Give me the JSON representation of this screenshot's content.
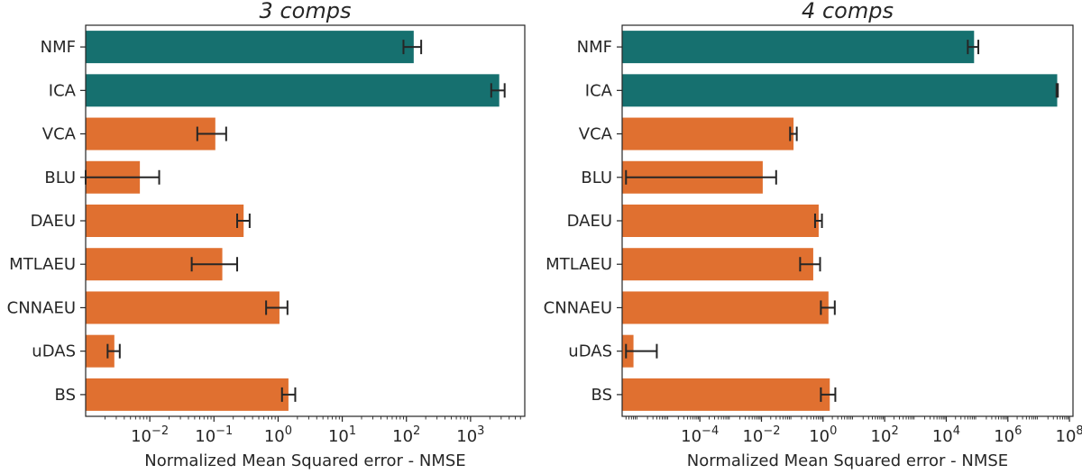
{
  "colors": {
    "baseline": "#16706f",
    "deep": "#e07030",
    "axis": "#262626"
  },
  "chart_data": [
    {
      "type": "bar",
      "orientation": "horizontal",
      "title": "3 comps",
      "xlabel": "Normalized Mean Squared error - NMSE",
      "xscale": "log",
      "xlim": [
        0.001,
        7000
      ],
      "xticks": [
        {
          "value": 0.01,
          "label": "10",
          "exp": "−2"
        },
        {
          "value": 0.1,
          "label": "10",
          "exp": "−1"
        },
        {
          "value": 1,
          "label": "10",
          "exp": "0"
        },
        {
          "value": 10,
          "label": "10",
          "exp": "1"
        },
        {
          "value": 100,
          "label": "10",
          "exp": "2"
        },
        {
          "value": 1000,
          "label": "10",
          "exp": "3"
        }
      ],
      "categories": [
        "NMF",
        "ICA",
        "VCA",
        "BLU",
        "DAEU",
        "MTLAEU",
        "CNNAEU",
        "uDAS",
        "BS"
      ],
      "values": [
        130,
        2800,
        0.105,
        0.007,
        0.29,
        0.135,
        1.05,
        0.0028,
        1.45
      ],
      "error_low": [
        90,
        2100,
        0.055,
        0.0009,
        0.23,
        0.045,
        0.65,
        0.0022,
        1.15
      ],
      "error_high": [
        170,
        3400,
        0.155,
        0.014,
        0.36,
        0.23,
        1.4,
        0.0034,
        1.85
      ],
      "groups": [
        "baseline",
        "baseline",
        "deep",
        "deep",
        "deep",
        "deep",
        "deep",
        "deep",
        "deep"
      ]
    },
    {
      "type": "bar",
      "orientation": "horizontal",
      "title": "4 comps",
      "xlabel": "Normalized Mean Squared error - NMSE",
      "xscale": "log",
      "xlim": [
        3e-07,
        130000000
      ],
      "xticks": [
        {
          "value": 0.0001,
          "label": "10",
          "exp": "−4"
        },
        {
          "value": 0.01,
          "label": "10",
          "exp": "−2"
        },
        {
          "value": 1,
          "label": "10",
          "exp": "0"
        },
        {
          "value": 100,
          "label": "10",
          "exp": "2"
        },
        {
          "value": 10000,
          "label": "10",
          "exp": "4"
        },
        {
          "value": 1000000,
          "label": "10",
          "exp": "6"
        },
        {
          "value": 100000000,
          "label": "10",
          "exp": "8"
        }
      ],
      "categories": [
        "NMF",
        "ICA",
        "VCA",
        "BLU",
        "DAEU",
        "MTLAEU",
        "CNNAEU",
        "uDAS",
        "BS"
      ],
      "values": [
        80000,
        40000000,
        0.11,
        0.011,
        0.72,
        0.48,
        1.5,
        7e-07,
        1.65
      ],
      "error_low": [
        50000,
        38000000,
        0.085,
        4e-07,
        0.55,
        0.18,
        0.85,
        4e-07,
        0.85
      ],
      "error_high": [
        110000,
        42000000,
        0.14,
        0.03,
        0.92,
        0.8,
        2.4,
        4e-06,
        2.5
      ],
      "groups": [
        "baseline",
        "baseline",
        "deep",
        "deep",
        "deep",
        "deep",
        "deep",
        "deep",
        "deep"
      ]
    }
  ]
}
